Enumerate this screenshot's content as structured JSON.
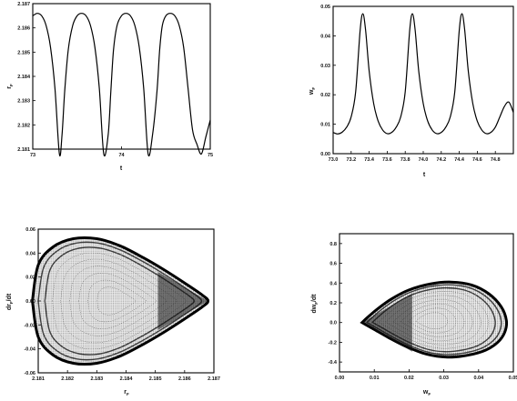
{
  "chart_data": [
    {
      "panel": "top-left",
      "type": "line",
      "xlabel": "t",
      "ylabel": {
        "base": "r",
        "sub": "F"
      },
      "xlim": [
        73,
        75
      ],
      "ylim": [
        2.181,
        2.187
      ],
      "xticks": [
        "73",
        "74",
        "75"
      ],
      "yticks": [
        "2.181",
        "2.182",
        "2.183",
        "2.184",
        "2.185",
        "2.186",
        "2.187"
      ],
      "series": [
        {
          "x": [
            73.0,
            73.05,
            73.1,
            73.15,
            73.2,
            73.25,
            73.3,
            73.33,
            73.36,
            73.4,
            73.45,
            73.5,
            73.55,
            73.6,
            73.65,
            73.7,
            73.75,
            73.8,
            73.85,
            73.88,
            73.91,
            73.95,
            74.0,
            74.05,
            74.1,
            74.15,
            74.2,
            74.25,
            74.3,
            74.35,
            74.4,
            74.43,
            74.46,
            74.5,
            74.55,
            74.6,
            74.65,
            74.7,
            74.75,
            74.8,
            74.85,
            74.9,
            74.95,
            75.0
          ],
          "y": [
            2.1865,
            2.1866,
            2.1865,
            2.1861,
            2.1852,
            2.1835,
            2.1808,
            2.1816,
            2.1834,
            2.1851,
            2.1861,
            2.1865,
            2.1866,
            2.1865,
            2.1861,
            2.1852,
            2.1835,
            2.1808,
            2.1816,
            2.1834,
            2.1851,
            2.1861,
            2.1865,
            2.1866,
            2.1865,
            2.1861,
            2.1852,
            2.1835,
            2.1808,
            2.1816,
            2.1834,
            2.1851,
            2.1861,
            2.1865,
            2.1866,
            2.1865,
            2.1861,
            2.1852,
            2.1835,
            2.1818,
            2.1812,
            2.1808,
            2.1815,
            2.1822
          ]
        }
      ]
    },
    {
      "panel": "top-right",
      "type": "line",
      "xlabel": "t",
      "ylabel": {
        "base": "w",
        "sub": "F"
      },
      "xlim": [
        73.0,
        75.0
      ],
      "ylim": [
        0.0,
        0.05
      ],
      "xticks": [
        "73.0",
        "73.2",
        "73.4",
        "73.6",
        "73.8",
        "74.0",
        "74.2",
        "74.4",
        "74.6",
        "74.8"
      ],
      "yticks": [
        "0.00",
        "0.01",
        "0.02",
        "0.03",
        "0.04",
        "0.05"
      ],
      "series": [
        {
          "x": [
            73.0,
            73.05,
            73.1,
            73.15,
            73.2,
            73.25,
            73.3,
            73.33,
            73.36,
            73.4,
            73.45,
            73.5,
            73.55,
            73.6,
            73.65,
            73.7,
            73.75,
            73.8,
            73.85,
            73.88,
            73.91,
            73.95,
            74.0,
            74.05,
            74.1,
            74.15,
            74.2,
            74.25,
            74.3,
            74.35,
            74.4,
            74.43,
            74.46,
            74.5,
            74.55,
            74.6,
            74.65,
            74.7,
            74.75,
            74.8,
            74.85,
            74.9,
            74.95,
            75.0
          ],
          "y": [
            0.0072,
            0.0067,
            0.0073,
            0.009,
            0.0125,
            0.021,
            0.042,
            0.0475,
            0.042,
            0.028,
            0.017,
            0.011,
            0.008,
            0.0068,
            0.0072,
            0.009,
            0.0125,
            0.021,
            0.042,
            0.0475,
            0.042,
            0.028,
            0.017,
            0.011,
            0.008,
            0.0068,
            0.0072,
            0.009,
            0.0125,
            0.021,
            0.042,
            0.0475,
            0.042,
            0.028,
            0.017,
            0.011,
            0.008,
            0.0068,
            0.0072,
            0.009,
            0.0125,
            0.016,
            0.0175,
            0.014
          ]
        }
      ]
    },
    {
      "panel": "bottom-left",
      "type": "scatter",
      "xlabel": {
        "base": "r",
        "sub": "F"
      },
      "ylabel": {
        "base": "dr",
        "sub": "F",
        "suffix": "/dt"
      },
      "xlim": [
        2.181,
        2.187
      ],
      "ylim": [
        -0.06,
        0.06
      ],
      "xticks": [
        "2.181",
        "2.182",
        "2.183",
        "2.184",
        "2.185",
        "2.186",
        "2.187"
      ],
      "yticks": [
        "-0.06",
        "-0.04",
        "-0.02",
        "0.00",
        "0.02",
        "0.04",
        "0.06"
      ],
      "envelope": {
        "x": [
          2.1808,
          2.181,
          2.1815,
          2.1822,
          2.183,
          2.1838,
          2.1846,
          2.1853,
          2.186,
          2.1866,
          2.1868,
          2.1866,
          2.186,
          2.1853,
          2.1846,
          2.1838,
          2.183,
          2.1822,
          2.1815,
          2.181,
          2.1808
        ],
        "y": [
          0.0,
          0.03,
          0.045,
          0.052,
          0.052,
          0.046,
          0.036,
          0.026,
          0.015,
          0.005,
          0.0,
          -0.005,
          -0.015,
          -0.026,
          -0.036,
          -0.046,
          -0.052,
          -0.052,
          -0.045,
          -0.03,
          0.0
        ]
      }
    },
    {
      "panel": "bottom-right",
      "type": "scatter",
      "xlabel": {
        "base": "w",
        "sub": "F"
      },
      "ylabel": {
        "base": "dw",
        "sub": "F",
        "suffix": "/dt"
      },
      "xlim": [
        0.0,
        0.05
      ],
      "ylim": [
        -0.5,
        0.9
      ],
      "xticks": [
        "0.00",
        "0.01",
        "0.02",
        "0.03",
        "0.04",
        "0.05"
      ],
      "yticks": [
        "-0.4",
        "-0.2",
        "0.0",
        "0.2",
        "0.4",
        "0.6",
        "0.8"
      ],
      "envelope": {
        "x": [
          0.0065,
          0.008,
          0.011,
          0.015,
          0.02,
          0.026,
          0.032,
          0.038,
          0.043,
          0.0465,
          0.048,
          0.0475,
          0.0455,
          0.042,
          0.037,
          0.031,
          0.025,
          0.019,
          0.014,
          0.01,
          0.0075,
          0.0065
        ],
        "y": [
          0.0,
          0.05,
          0.14,
          0.24,
          0.33,
          0.39,
          0.41,
          0.38,
          0.29,
          0.16,
          0.02,
          -0.1,
          -0.2,
          -0.28,
          -0.33,
          -0.35,
          -0.32,
          -0.24,
          -0.15,
          -0.07,
          -0.02,
          0.0
        ]
      }
    }
  ]
}
